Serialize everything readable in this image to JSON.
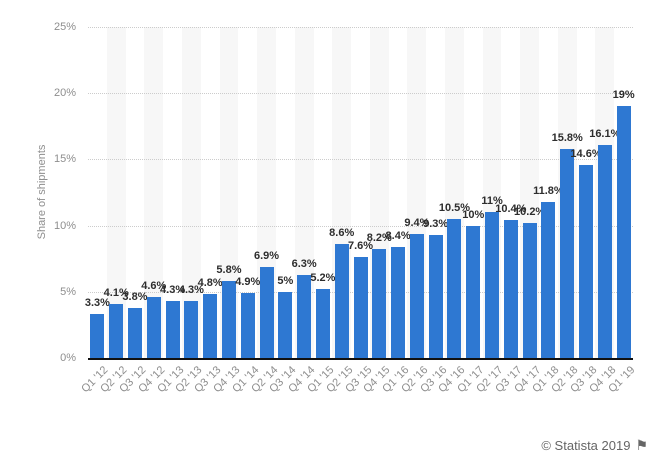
{
  "chart_data": {
    "type": "bar",
    "ylabel": "Share of shipments",
    "categories": [
      "Q1 '12",
      "Q2 '12",
      "Q3 '12",
      "Q4 '12",
      "Q1 '13",
      "Q2 '13",
      "Q3 '13",
      "Q4 '13",
      "Q1 '14",
      "Q2 '14",
      "Q3 '14",
      "Q4 '14",
      "Q1 '15",
      "Q2 '15",
      "Q3 '15",
      "Q4 '15",
      "Q1 '16",
      "Q2 '16",
      "Q3 '16",
      "Q4 '16",
      "Q1 '17",
      "Q2 '17",
      "Q3 '17",
      "Q4 '17",
      "Q1 '18",
      "Q2 '18",
      "Q3 '18",
      "Q4 '18",
      "Q1 '19"
    ],
    "values": [
      3.3,
      4.1,
      3.8,
      4.6,
      4.3,
      4.3,
      4.8,
      5.8,
      4.9,
      6.9,
      5,
      6.3,
      5.2,
      8.6,
      7.6,
      8.2,
      8.4,
      9.4,
      9.3,
      10.5,
      10,
      11,
      10.4,
      10.2,
      11.8,
      15.8,
      14.6,
      16.1,
      19
    ],
    "labels": [
      "3.3%",
      "4.1%",
      "3.8%",
      "4.6%",
      "4.3%",
      "4.3%",
      "4.8%",
      "5.8%",
      "4.9%",
      "6.9%",
      "5%",
      "6.3%",
      "5.2%",
      "8.6%",
      "7.6%",
      "8.2%",
      "8.4%",
      "9.4%",
      "9.3%",
      "10.5%",
      "10%",
      "11%",
      "10.4%",
      "10.2%",
      "11.8%",
      "15.8%",
      "14.6%",
      "16.1%",
      "19%"
    ],
    "ylim": [
      0,
      25
    ],
    "ytick_values": [
      0,
      5,
      10,
      15,
      20,
      25
    ],
    "yticks": [
      "0%",
      "5%",
      "10%",
      "15%",
      "20%",
      "25%"
    ],
    "grid": "horizontal-dotted",
    "legend": "none",
    "colors": {
      "bar": "#2e78d2",
      "band": "#f7f7f7",
      "gridline": "#cccccc",
      "axis_line": "#111111",
      "value_label": "#2d2d2d",
      "tick_label": "#8e8e8e",
      "axis_title": "#8e8e8e"
    }
  },
  "footer": {
    "attribution": "© Statista 2019",
    "flag_icon": "⚑",
    "color": "#666666"
  }
}
